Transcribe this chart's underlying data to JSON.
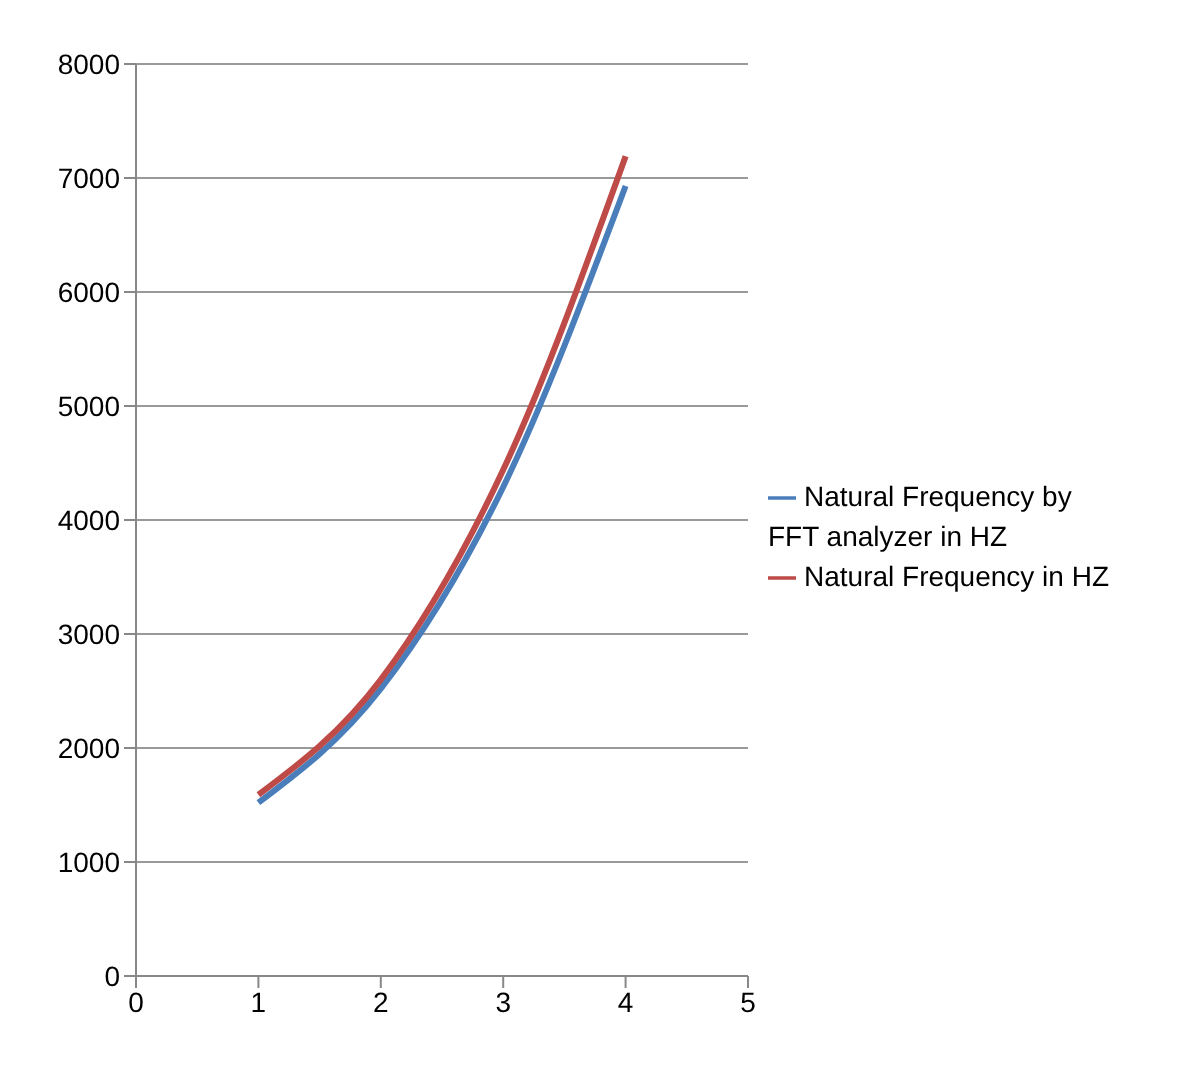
{
  "chart_data": {
    "type": "line",
    "x": [
      1,
      2,
      3,
      4
    ],
    "series": [
      {
        "name": "Natural Frequency by FFT analyzer in HZ",
        "color": "#4a7ebb",
        "values": [
          1520,
          2520,
          4290,
          6930
        ]
      },
      {
        "name": "Natural Frequency in HZ",
        "color": "#be4b48",
        "values": [
          1590,
          2600,
          4440,
          7190
        ]
      }
    ],
    "xlim": [
      0,
      5
    ],
    "xticks": [
      0,
      1,
      2,
      3,
      4,
      5
    ],
    "ylim": [
      0,
      8000
    ],
    "yticks": [
      0,
      1000,
      2000,
      3000,
      4000,
      5000,
      6000,
      7000,
      8000
    ],
    "grid": "y",
    "legend": "right",
    "marker": "none",
    "line_style": "solid"
  }
}
